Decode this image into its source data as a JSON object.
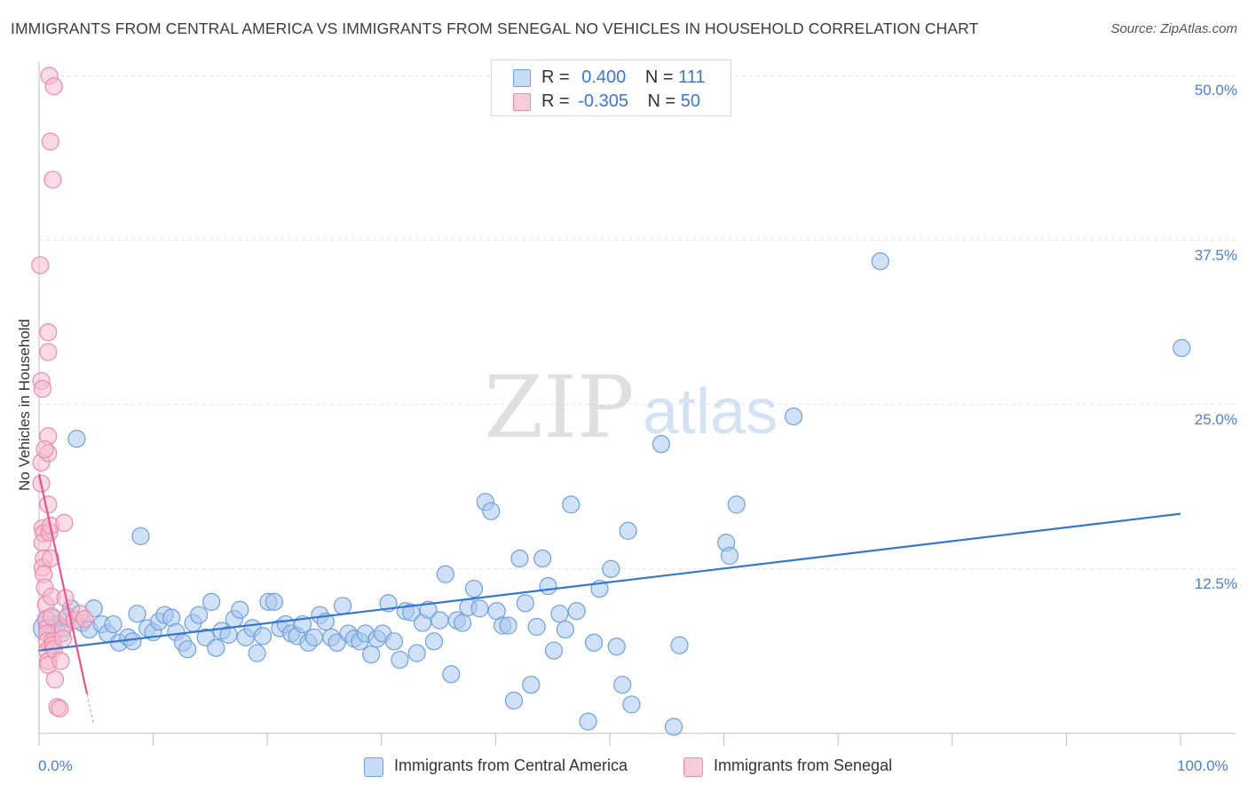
{
  "title": "IMMIGRANTS FROM CENTRAL AMERICA VS IMMIGRANTS FROM SENEGAL NO VEHICLES IN HOUSEHOLD CORRELATION CHART",
  "source": "Source: ZipAtlas.com",
  "watermark": {
    "zip": "ZIP",
    "atlas": "atlas"
  },
  "legend": {
    "rows": [
      {
        "r_label": "R =",
        "r_value": "0.400",
        "n_label": "N =",
        "n_value": "111"
      },
      {
        "r_label": "R =",
        "r_value": "-0.305",
        "n_label": "N =",
        "n_value": "50"
      }
    ]
  },
  "colors": {
    "blue_fill": "#a9c8f0",
    "blue_stroke": "#6f9fdc",
    "blue_line": "#3476d2",
    "pink_fill": "#f6bccd",
    "pink_stroke": "#ec8aa8",
    "pink_line": "#e4558a",
    "grid": "#e2e2e2",
    "axis_text": "#4a7fcf"
  },
  "chart_data": {
    "type": "scatter",
    "title": "IMMIGRANTS FROM CENTRAL AMERICA VS IMMIGRANTS FROM SENEGAL NO VEHICLES IN HOUSEHOLD CORRELATION CHART",
    "xlabel": "",
    "ylabel": "No Vehicles in Household",
    "xlim": [
      0,
      100
    ],
    "ylim": [
      0,
      50.5
    ],
    "x_tick_labels": [
      "0.0%",
      "100.0%"
    ],
    "y_tick_labels": [
      "12.5%",
      "25.0%",
      "37.5%",
      "50.0%"
    ],
    "y_tick_values": [
      12.5,
      25.0,
      37.5,
      50.0
    ],
    "series": [
      {
        "name": "Immigrants from Central America",
        "color": "blue",
        "r": 0.4,
        "n": 111,
        "trend": {
          "x": [
            0,
            100
          ],
          "y": [
            6.3,
            16.7
          ]
        },
        "points": [
          {
            "x": 0.6,
            "y": 8.0,
            "s": 2
          },
          {
            "x": 1.0,
            "y": 8.5,
            "s": 2
          },
          {
            "x": 1.3,
            "y": 7.7,
            "s": 1
          },
          {
            "x": 1.6,
            "y": 8.3,
            "s": 1
          },
          {
            "x": 2.0,
            "y": 7.6,
            "s": 1
          },
          {
            "x": 2.4,
            "y": 8.8,
            "s": 1
          },
          {
            "x": 2.8,
            "y": 9.5,
            "s": 1
          },
          {
            "x": 3.3,
            "y": 22.4,
            "s": 1
          },
          {
            "x": 3.8,
            "y": 8.4,
            "s": 1
          },
          {
            "x": 4.4,
            "y": 7.9,
            "s": 1
          },
          {
            "x": 4.8,
            "y": 9.5,
            "s": 1
          },
          {
            "x": 5.5,
            "y": 8.3,
            "s": 1
          },
          {
            "x": 6.0,
            "y": 7.6,
            "s": 1
          },
          {
            "x": 6.5,
            "y": 8.3,
            "s": 1
          },
          {
            "x": 7.0,
            "y": 6.9,
            "s": 1
          },
          {
            "x": 7.8,
            "y": 7.3,
            "s": 1
          },
          {
            "x": 8.2,
            "y": 7.0,
            "s": 1
          },
          {
            "x": 8.6,
            "y": 9.1,
            "s": 1
          },
          {
            "x": 8.9,
            "y": 15.0,
            "s": 1
          },
          {
            "x": 9.5,
            "y": 8.0,
            "s": 1
          },
          {
            "x": 10.0,
            "y": 7.7,
            "s": 1
          },
          {
            "x": 10.5,
            "y": 8.5,
            "s": 1
          },
          {
            "x": 11.0,
            "y": 9.0,
            "s": 1
          },
          {
            "x": 11.6,
            "y": 8.8,
            "s": 1
          },
          {
            "x": 12.0,
            "y": 7.7,
            "s": 1
          },
          {
            "x": 12.6,
            "y": 6.9,
            "s": 1
          },
          {
            "x": 13.0,
            "y": 6.4,
            "s": 1
          },
          {
            "x": 13.5,
            "y": 8.4,
            "s": 1
          },
          {
            "x": 14.0,
            "y": 9.0,
            "s": 1
          },
          {
            "x": 14.6,
            "y": 7.3,
            "s": 1
          },
          {
            "x": 15.1,
            "y": 10.0,
            "s": 1
          },
          {
            "x": 15.5,
            "y": 6.5,
            "s": 1
          },
          {
            "x": 16.0,
            "y": 7.8,
            "s": 1
          },
          {
            "x": 16.6,
            "y": 7.5,
            "s": 1
          },
          {
            "x": 17.1,
            "y": 8.7,
            "s": 1
          },
          {
            "x": 17.6,
            "y": 9.4,
            "s": 1
          },
          {
            "x": 18.1,
            "y": 7.3,
            "s": 1
          },
          {
            "x": 18.7,
            "y": 8.0,
            "s": 1
          },
          {
            "x": 19.1,
            "y": 6.1,
            "s": 1
          },
          {
            "x": 19.6,
            "y": 7.4,
            "s": 1
          },
          {
            "x": 20.1,
            "y": 10.0,
            "s": 1
          },
          {
            "x": 20.6,
            "y": 10.0,
            "s": 1
          },
          {
            "x": 21.1,
            "y": 8.0,
            "s": 1
          },
          {
            "x": 21.6,
            "y": 8.3,
            "s": 1
          },
          {
            "x": 22.1,
            "y": 7.6,
            "s": 1
          },
          {
            "x": 22.6,
            "y": 7.4,
            "s": 1
          },
          {
            "x": 23.1,
            "y": 8.3,
            "s": 1
          },
          {
            "x": 23.6,
            "y": 6.9,
            "s": 1
          },
          {
            "x": 24.1,
            "y": 7.3,
            "s": 1
          },
          {
            "x": 24.6,
            "y": 9.0,
            "s": 1
          },
          {
            "x": 25.1,
            "y": 8.5,
            "s": 1
          },
          {
            "x": 25.6,
            "y": 7.3,
            "s": 1
          },
          {
            "x": 26.1,
            "y": 6.9,
            "s": 1
          },
          {
            "x": 26.6,
            "y": 9.7,
            "s": 1
          },
          {
            "x": 27.1,
            "y": 7.6,
            "s": 1
          },
          {
            "x": 27.6,
            "y": 7.2,
            "s": 1
          },
          {
            "x": 28.1,
            "y": 7.0,
            "s": 1
          },
          {
            "x": 28.6,
            "y": 7.6,
            "s": 1
          },
          {
            "x": 29.1,
            "y": 6.0,
            "s": 1
          },
          {
            "x": 29.6,
            "y": 7.2,
            "s": 1
          },
          {
            "x": 30.1,
            "y": 7.6,
            "s": 1
          },
          {
            "x": 30.6,
            "y": 9.9,
            "s": 1
          },
          {
            "x": 31.1,
            "y": 7.0,
            "s": 1
          },
          {
            "x": 31.6,
            "y": 5.6,
            "s": 1
          },
          {
            "x": 32.1,
            "y": 9.3,
            "s": 1
          },
          {
            "x": 32.6,
            "y": 9.2,
            "s": 1
          },
          {
            "x": 33.1,
            "y": 6.1,
            "s": 1
          },
          {
            "x": 33.6,
            "y": 8.4,
            "s": 1
          },
          {
            "x": 34.1,
            "y": 9.4,
            "s": 1
          },
          {
            "x": 34.6,
            "y": 7.0,
            "s": 1
          },
          {
            "x": 35.1,
            "y": 8.6,
            "s": 1
          },
          {
            "x": 35.6,
            "y": 12.1,
            "s": 1
          },
          {
            "x": 36.1,
            "y": 4.5,
            "s": 1
          },
          {
            "x": 36.6,
            "y": 8.6,
            "s": 1
          },
          {
            "x": 37.1,
            "y": 8.4,
            "s": 1
          },
          {
            "x": 37.6,
            "y": 9.6,
            "s": 1
          },
          {
            "x": 38.1,
            "y": 11.0,
            "s": 1
          },
          {
            "x": 38.6,
            "y": 9.5,
            "s": 1
          },
          {
            "x": 39.1,
            "y": 17.6,
            "s": 1
          },
          {
            "x": 39.6,
            "y": 16.9,
            "s": 1
          },
          {
            "x": 40.1,
            "y": 9.3,
            "s": 1
          },
          {
            "x": 40.6,
            "y": 8.2,
            "s": 1
          },
          {
            "x": 41.1,
            "y": 8.2,
            "s": 1
          },
          {
            "x": 41.6,
            "y": 2.5,
            "s": 1
          },
          {
            "x": 42.1,
            "y": 13.3,
            "s": 1
          },
          {
            "x": 42.6,
            "y": 9.9,
            "s": 1
          },
          {
            "x": 43.1,
            "y": 3.7,
            "s": 1
          },
          {
            "x": 43.6,
            "y": 8.1,
            "s": 1
          },
          {
            "x": 44.1,
            "y": 13.3,
            "s": 1
          },
          {
            "x": 44.6,
            "y": 11.2,
            "s": 1
          },
          {
            "x": 45.1,
            "y": 6.3,
            "s": 1
          },
          {
            "x": 45.6,
            "y": 9.1,
            "s": 1
          },
          {
            "x": 46.1,
            "y": 7.9,
            "s": 1
          },
          {
            "x": 46.6,
            "y": 17.4,
            "s": 1
          },
          {
            "x": 47.1,
            "y": 9.3,
            "s": 1
          },
          {
            "x": 48.1,
            "y": 0.9,
            "s": 1
          },
          {
            "x": 48.6,
            "y": 6.9,
            "s": 1
          },
          {
            "x": 49.1,
            "y": 11.0,
            "s": 1
          },
          {
            "x": 50.1,
            "y": 12.5,
            "s": 1
          },
          {
            "x": 50.6,
            "y": 6.6,
            "s": 1
          },
          {
            "x": 51.1,
            "y": 3.7,
            "s": 1
          },
          {
            "x": 51.6,
            "y": 15.4,
            "s": 1
          },
          {
            "x": 51.9,
            "y": 2.2,
            "s": 1
          },
          {
            "x": 54.5,
            "y": 22.0,
            "s": 1
          },
          {
            "x": 55.6,
            "y": 0.5,
            "s": 1
          },
          {
            "x": 56.1,
            "y": 6.7,
            "s": 1
          },
          {
            "x": 60.2,
            "y": 14.5,
            "s": 1
          },
          {
            "x": 60.5,
            "y": 13.5,
            "s": 1
          },
          {
            "x": 61.1,
            "y": 17.4,
            "s": 1
          },
          {
            "x": 66.1,
            "y": 24.1,
            "s": 1
          },
          {
            "x": 73.7,
            "y": 35.9,
            "s": 1
          },
          {
            "x": 100.1,
            "y": 29.3,
            "s": 1
          }
        ]
      },
      {
        "name": "Immigrants from Senegal",
        "color": "pink",
        "r": -0.305,
        "n": 50,
        "trend": {
          "x": [
            0,
            4.2
          ],
          "y": [
            19.7,
            3.0
          ],
          "dash_to": {
            "x": 4.8,
            "y": 0.6
          }
        },
        "points": [
          {
            "x": 0.1,
            "y": 35.6,
            "s": 1
          },
          {
            "x": 0.2,
            "y": 26.8,
            "s": 1
          },
          {
            "x": 0.3,
            "y": 26.2,
            "s": 1
          },
          {
            "x": 0.2,
            "y": 20.6,
            "s": 1
          },
          {
            "x": 0.2,
            "y": 19.0,
            "s": 1
          },
          {
            "x": 0.3,
            "y": 15.6,
            "s": 1
          },
          {
            "x": 0.4,
            "y": 15.2,
            "s": 1
          },
          {
            "x": 0.3,
            "y": 14.5,
            "s": 1
          },
          {
            "x": 0.4,
            "y": 13.3,
            "s": 1
          },
          {
            "x": 0.3,
            "y": 12.6,
            "s": 1
          },
          {
            "x": 0.4,
            "y": 12.1,
            "s": 1
          },
          {
            "x": 0.5,
            "y": 11.1,
            "s": 1
          },
          {
            "x": 0.6,
            "y": 9.8,
            "s": 1
          },
          {
            "x": 0.6,
            "y": 8.7,
            "s": 1
          },
          {
            "x": 0.7,
            "y": 8.0,
            "s": 1
          },
          {
            "x": 0.7,
            "y": 7.6,
            "s": 1
          },
          {
            "x": 0.7,
            "y": 7.0,
            "s": 1
          },
          {
            "x": 0.7,
            "y": 6.3,
            "s": 1
          },
          {
            "x": 0.8,
            "y": 5.5,
            "s": 1
          },
          {
            "x": 0.8,
            "y": 5.2,
            "s": 1
          },
          {
            "x": 0.8,
            "y": 29.0,
            "s": 1
          },
          {
            "x": 0.8,
            "y": 30.5,
            "s": 1
          },
          {
            "x": 0.8,
            "y": 22.6,
            "s": 1
          },
          {
            "x": 0.8,
            "y": 21.3,
            "s": 1
          },
          {
            "x": 0.8,
            "y": 17.4,
            "s": 1
          },
          {
            "x": 0.9,
            "y": 15.3,
            "s": 1
          },
          {
            "x": 1.0,
            "y": 15.8,
            "s": 1
          },
          {
            "x": 1.0,
            "y": 13.3,
            "s": 1
          },
          {
            "x": 1.1,
            "y": 10.4,
            "s": 1
          },
          {
            "x": 1.1,
            "y": 8.9,
            "s": 1
          },
          {
            "x": 1.2,
            "y": 7.0,
            "s": 1
          },
          {
            "x": 1.2,
            "y": 6.7,
            "s": 1
          },
          {
            "x": 1.3,
            "y": 6.4,
            "s": 1
          },
          {
            "x": 1.4,
            "y": 4.1,
            "s": 1
          },
          {
            "x": 1.6,
            "y": 2.0,
            "s": 1
          },
          {
            "x": 1.8,
            "y": 1.9,
            "s": 1
          },
          {
            "x": 1.9,
            "y": 5.5,
            "s": 1
          },
          {
            "x": 2.1,
            "y": 8.0,
            "s": 1
          },
          {
            "x": 2.1,
            "y": 7.2,
            "s": 1
          },
          {
            "x": 2.2,
            "y": 16.0,
            "s": 1
          },
          {
            "x": 2.3,
            "y": 10.3,
            "s": 1
          },
          {
            "x": 2.5,
            "y": 8.9,
            "s": 1
          },
          {
            "x": 3.1,
            "y": 8.6,
            "s": 1
          },
          {
            "x": 3.6,
            "y": 9.1,
            "s": 1
          },
          {
            "x": 4.0,
            "y": 8.7,
            "s": 1
          },
          {
            "x": 0.9,
            "y": 50.0,
            "s": 1
          },
          {
            "x": 1.3,
            "y": 49.2,
            "s": 1
          },
          {
            "x": 1.0,
            "y": 45.0,
            "s": 1
          },
          {
            "x": 1.2,
            "y": 42.1,
            "s": 1
          },
          {
            "x": 0.5,
            "y": 21.6,
            "s": 1
          }
        ]
      }
    ]
  },
  "bottom_legend": [
    "Immigrants from Central America",
    "Immigrants from Senegal"
  ]
}
